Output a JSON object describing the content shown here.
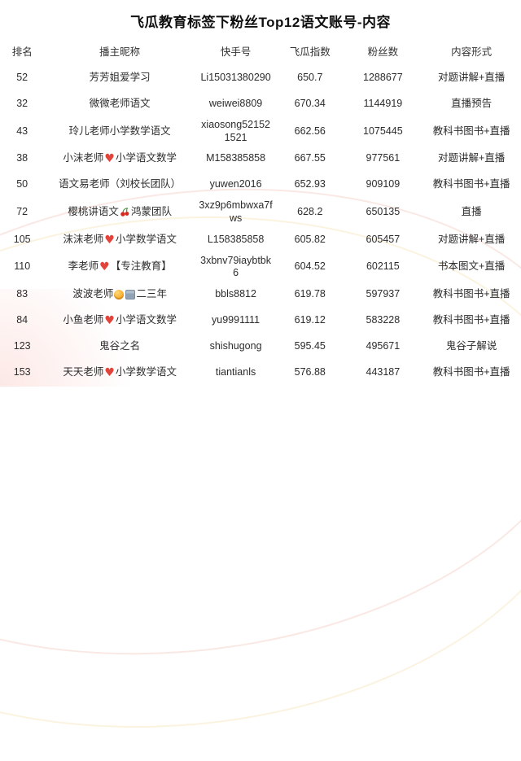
{
  "title": "飞瓜教育标签下粉丝Top12语文账号-内容",
  "icons": {
    "heart": {
      "glyph": "♥",
      "color": "#e2443b"
    },
    "cherry": {
      "body_color": "#d42b20",
      "stem_color": "#4a8f3c"
    },
    "face": {
      "color": "#f5a623"
    },
    "building": {
      "color": "#8fa3b5"
    }
  },
  "table": {
    "columns": [
      "排名",
      "播主昵称",
      "快手号",
      "飞瓜指数",
      "粉丝数",
      "内容形式"
    ],
    "rows": [
      {
        "rank": "52",
        "nickname": [
          {
            "t": "text",
            "v": "芳芳姐爱学习"
          }
        ],
        "kuaishou_id": "Li15031380290",
        "feigua_index": "650.7",
        "fans": "1288677",
        "content_format": "对题讲解+直播"
      },
      {
        "rank": "32",
        "nickname": [
          {
            "t": "text",
            "v": "微微老师语文"
          }
        ],
        "kuaishou_id": "weiwei8809",
        "feigua_index": "670.34",
        "fans": "1144919",
        "content_format": "直播预告"
      },
      {
        "rank": "43",
        "nickname": [
          {
            "t": "text",
            "v": "玲儿老师小学数学语文"
          }
        ],
        "kuaishou_id": "xiaosong521521521",
        "feigua_index": "662.56",
        "fans": "1075445",
        "content_format": "教科书图书+直播"
      },
      {
        "rank": "38",
        "nickname": [
          {
            "t": "text",
            "v": "小沫老师"
          },
          {
            "t": "icon",
            "v": "heart"
          },
          {
            "t": "text",
            "v": "小学语文数学"
          }
        ],
        "kuaishou_id": "M158385858",
        "feigua_index": "667.55",
        "fans": "977561",
        "content_format": "对题讲解+直播"
      },
      {
        "rank": "50",
        "nickname": [
          {
            "t": "text",
            "v": "语文易老师（刘校长团队）"
          }
        ],
        "kuaishou_id": "yuwen2016",
        "feigua_index": "652.93",
        "fans": "909109",
        "content_format": "教科书图书+直播"
      },
      {
        "rank": "72",
        "nickname": [
          {
            "t": "text",
            "v": "樱桃讲语文"
          },
          {
            "t": "icon",
            "v": "cherry"
          },
          {
            "t": "text",
            "v": "鸿蒙团队"
          }
        ],
        "kuaishou_id": "3xz9p6mbwxa7fws",
        "feigua_index": "628.2",
        "fans": "650135",
        "content_format": "直播"
      },
      {
        "rank": "105",
        "nickname": [
          {
            "t": "text",
            "v": "沫沫老师"
          },
          {
            "t": "icon",
            "v": "heart"
          },
          {
            "t": "text",
            "v": "小学数学语文"
          }
        ],
        "kuaishou_id": "L158385858",
        "feigua_index": "605.82",
        "fans": "605457",
        "content_format": "对题讲解+直播"
      },
      {
        "rank": "110",
        "nickname": [
          {
            "t": "text",
            "v": "李老师"
          },
          {
            "t": "icon",
            "v": "heart"
          },
          {
            "t": "text",
            "v": "【专注教育】"
          }
        ],
        "kuaishou_id": "3xbnv79iaybtbk6",
        "feigua_index": "604.52",
        "fans": "602115",
        "content_format": "书本图文+直播"
      },
      {
        "rank": "83",
        "nickname": [
          {
            "t": "text",
            "v": "波波老师"
          },
          {
            "t": "icon",
            "v": "face"
          },
          {
            "t": "icon",
            "v": "building"
          },
          {
            "t": "text",
            "v": "二三年"
          }
        ],
        "kuaishou_id": "bbls8812",
        "feigua_index": "619.78",
        "fans": "597937",
        "content_format": "教科书图书+直播"
      },
      {
        "rank": "84",
        "nickname": [
          {
            "t": "text",
            "v": "小鱼老师"
          },
          {
            "t": "icon",
            "v": "heart"
          },
          {
            "t": "text",
            "v": "小学语文数学"
          }
        ],
        "kuaishou_id": "yu9991111",
        "feigua_index": "619.12",
        "fans": "583228",
        "content_format": "教科书图书+直播"
      },
      {
        "rank": "123",
        "nickname": [
          {
            "t": "text",
            "v": "鬼谷之名"
          }
        ],
        "kuaishou_id": "shishugong",
        "feigua_index": "595.45",
        "fans": "495671",
        "content_format": "鬼谷子解说"
      },
      {
        "rank": "153",
        "nickname": [
          {
            "t": "text",
            "v": "天天老师"
          },
          {
            "t": "icon",
            "v": "heart"
          },
          {
            "t": "text",
            "v": "小学数学语文"
          }
        ],
        "kuaishou_id": "tiantianls",
        "feigua_index": "576.88",
        "fans": "443187",
        "content_format": "教科书图书+直播"
      }
    ]
  }
}
